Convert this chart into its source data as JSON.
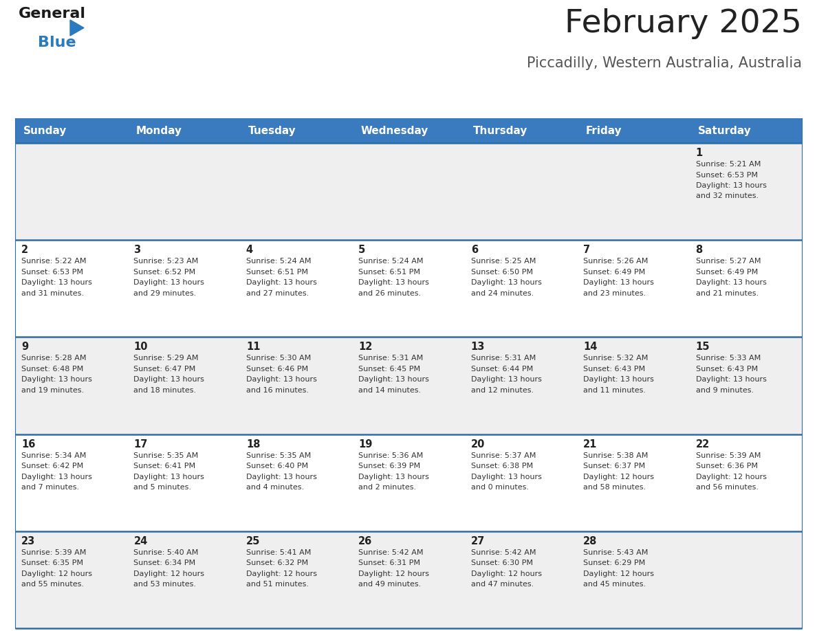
{
  "title": "February 2025",
  "subtitle": "Piccadilly, Western Australia, Australia",
  "header_bg": "#3a7abf",
  "header_text_color": "#ffffff",
  "days_of_week": [
    "Sunday",
    "Monday",
    "Tuesday",
    "Wednesday",
    "Thursday",
    "Friday",
    "Saturday"
  ],
  "row_bg_even": "#efefef",
  "row_bg_odd": "#ffffff",
  "cell_border_color": "#2e6da4",
  "day_number_color": "#222222",
  "info_text_color": "#333333",
  "title_color": "#222222",
  "subtitle_color": "#555555",
  "calendar": [
    [
      {
        "day": null
      },
      {
        "day": null
      },
      {
        "day": null
      },
      {
        "day": null
      },
      {
        "day": null
      },
      {
        "day": null
      },
      {
        "day": 1,
        "sunrise": "5:21 AM",
        "sunset": "6:53 PM",
        "daylight": "13 hours and 32 minutes."
      }
    ],
    [
      {
        "day": 2,
        "sunrise": "5:22 AM",
        "sunset": "6:53 PM",
        "daylight": "13 hours and 31 minutes."
      },
      {
        "day": 3,
        "sunrise": "5:23 AM",
        "sunset": "6:52 PM",
        "daylight": "13 hours and 29 minutes."
      },
      {
        "day": 4,
        "sunrise": "5:24 AM",
        "sunset": "6:51 PM",
        "daylight": "13 hours and 27 minutes."
      },
      {
        "day": 5,
        "sunrise": "5:24 AM",
        "sunset": "6:51 PM",
        "daylight": "13 hours and 26 minutes."
      },
      {
        "day": 6,
        "sunrise": "5:25 AM",
        "sunset": "6:50 PM",
        "daylight": "13 hours and 24 minutes."
      },
      {
        "day": 7,
        "sunrise": "5:26 AM",
        "sunset": "6:49 PM",
        "daylight": "13 hours and 23 minutes."
      },
      {
        "day": 8,
        "sunrise": "5:27 AM",
        "sunset": "6:49 PM",
        "daylight": "13 hours and 21 minutes."
      }
    ],
    [
      {
        "day": 9,
        "sunrise": "5:28 AM",
        "sunset": "6:48 PM",
        "daylight": "13 hours and 19 minutes."
      },
      {
        "day": 10,
        "sunrise": "5:29 AM",
        "sunset": "6:47 PM",
        "daylight": "13 hours and 18 minutes."
      },
      {
        "day": 11,
        "sunrise": "5:30 AM",
        "sunset": "6:46 PM",
        "daylight": "13 hours and 16 minutes."
      },
      {
        "day": 12,
        "sunrise": "5:31 AM",
        "sunset": "6:45 PM",
        "daylight": "13 hours and 14 minutes."
      },
      {
        "day": 13,
        "sunrise": "5:31 AM",
        "sunset": "6:44 PM",
        "daylight": "13 hours and 12 minutes."
      },
      {
        "day": 14,
        "sunrise": "5:32 AM",
        "sunset": "6:43 PM",
        "daylight": "13 hours and 11 minutes."
      },
      {
        "day": 15,
        "sunrise": "5:33 AM",
        "sunset": "6:43 PM",
        "daylight": "13 hours and 9 minutes."
      }
    ],
    [
      {
        "day": 16,
        "sunrise": "5:34 AM",
        "sunset": "6:42 PM",
        "daylight": "13 hours and 7 minutes."
      },
      {
        "day": 17,
        "sunrise": "5:35 AM",
        "sunset": "6:41 PM",
        "daylight": "13 hours and 5 minutes."
      },
      {
        "day": 18,
        "sunrise": "5:35 AM",
        "sunset": "6:40 PM",
        "daylight": "13 hours and 4 minutes."
      },
      {
        "day": 19,
        "sunrise": "5:36 AM",
        "sunset": "6:39 PM",
        "daylight": "13 hours and 2 minutes."
      },
      {
        "day": 20,
        "sunrise": "5:37 AM",
        "sunset": "6:38 PM",
        "daylight": "13 hours and 0 minutes."
      },
      {
        "day": 21,
        "sunrise": "5:38 AM",
        "sunset": "6:37 PM",
        "daylight": "12 hours and 58 minutes."
      },
      {
        "day": 22,
        "sunrise": "5:39 AM",
        "sunset": "6:36 PM",
        "daylight": "12 hours and 56 minutes."
      }
    ],
    [
      {
        "day": 23,
        "sunrise": "5:39 AM",
        "sunset": "6:35 PM",
        "daylight": "12 hours and 55 minutes."
      },
      {
        "day": 24,
        "sunrise": "5:40 AM",
        "sunset": "6:34 PM",
        "daylight": "12 hours and 53 minutes."
      },
      {
        "day": 25,
        "sunrise": "5:41 AM",
        "sunset": "6:32 PM",
        "daylight": "12 hours and 51 minutes."
      },
      {
        "day": 26,
        "sunrise": "5:42 AM",
        "sunset": "6:31 PM",
        "daylight": "12 hours and 49 minutes."
      },
      {
        "day": 27,
        "sunrise": "5:42 AM",
        "sunset": "6:30 PM",
        "daylight": "12 hours and 47 minutes."
      },
      {
        "day": 28,
        "sunrise": "5:43 AM",
        "sunset": "6:29 PM",
        "daylight": "12 hours and 45 minutes."
      },
      {
        "day": null
      }
    ]
  ],
  "logo_general_color": "#1a1a1a",
  "logo_blue_color": "#2a7abf",
  "logo_triangle_color": "#2a7abf",
  "fig_width": 11.88,
  "fig_height": 9.18,
  "dpi": 100
}
